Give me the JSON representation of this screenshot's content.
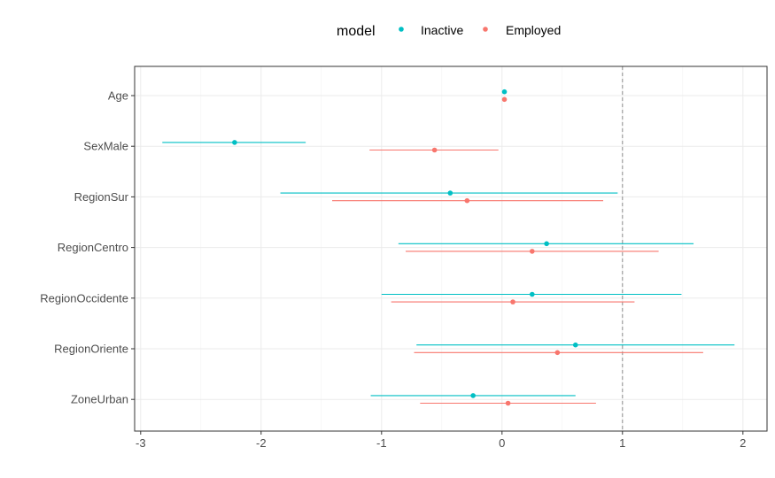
{
  "chart_data": {
    "type": "scatter",
    "subtype": "coefficient-plot-with-intervals",
    "legend": {
      "title": "model",
      "position": "top",
      "entries": [
        {
          "name": "Inactive",
          "color": "#00BFC4"
        },
        {
          "name": "Employed",
          "color": "#F8766D"
        }
      ]
    },
    "categories": [
      "Age",
      "SexMale",
      "RegionSur",
      "RegionCentro",
      "RegionOccidente",
      "RegionOriente",
      "ZoneUrban"
    ],
    "series": [
      {
        "name": "Inactive",
        "color": "#00BFC4",
        "estimates": [
          0.02,
          -2.22,
          -0.43,
          0.37,
          0.25,
          0.61,
          -0.24
        ],
        "lower": [
          0.02,
          -2.82,
          -1.84,
          -0.86,
          -1.0,
          -0.71,
          -1.09
        ],
        "upper": [
          0.02,
          -1.63,
          0.96,
          1.59,
          1.49,
          1.93,
          0.61
        ]
      },
      {
        "name": "Employed",
        "color": "#F8766D",
        "estimates": [
          0.02,
          -0.56,
          -0.29,
          0.25,
          0.09,
          0.46,
          0.05
        ],
        "lower": [
          0.02,
          -1.1,
          -1.41,
          -0.8,
          -0.92,
          -0.73,
          -0.68
        ],
        "upper": [
          0.02,
          -0.03,
          0.84,
          1.3,
          1.1,
          1.67,
          0.78
        ]
      }
    ],
    "x_ticks": [
      -3,
      -2,
      -1,
      0,
      1,
      2
    ],
    "xlim": [
      -3.05,
      2.2
    ],
    "reference_line": {
      "x": 1,
      "style": "dashed"
    },
    "xlabel": "",
    "ylabel": "",
    "grid": true
  }
}
